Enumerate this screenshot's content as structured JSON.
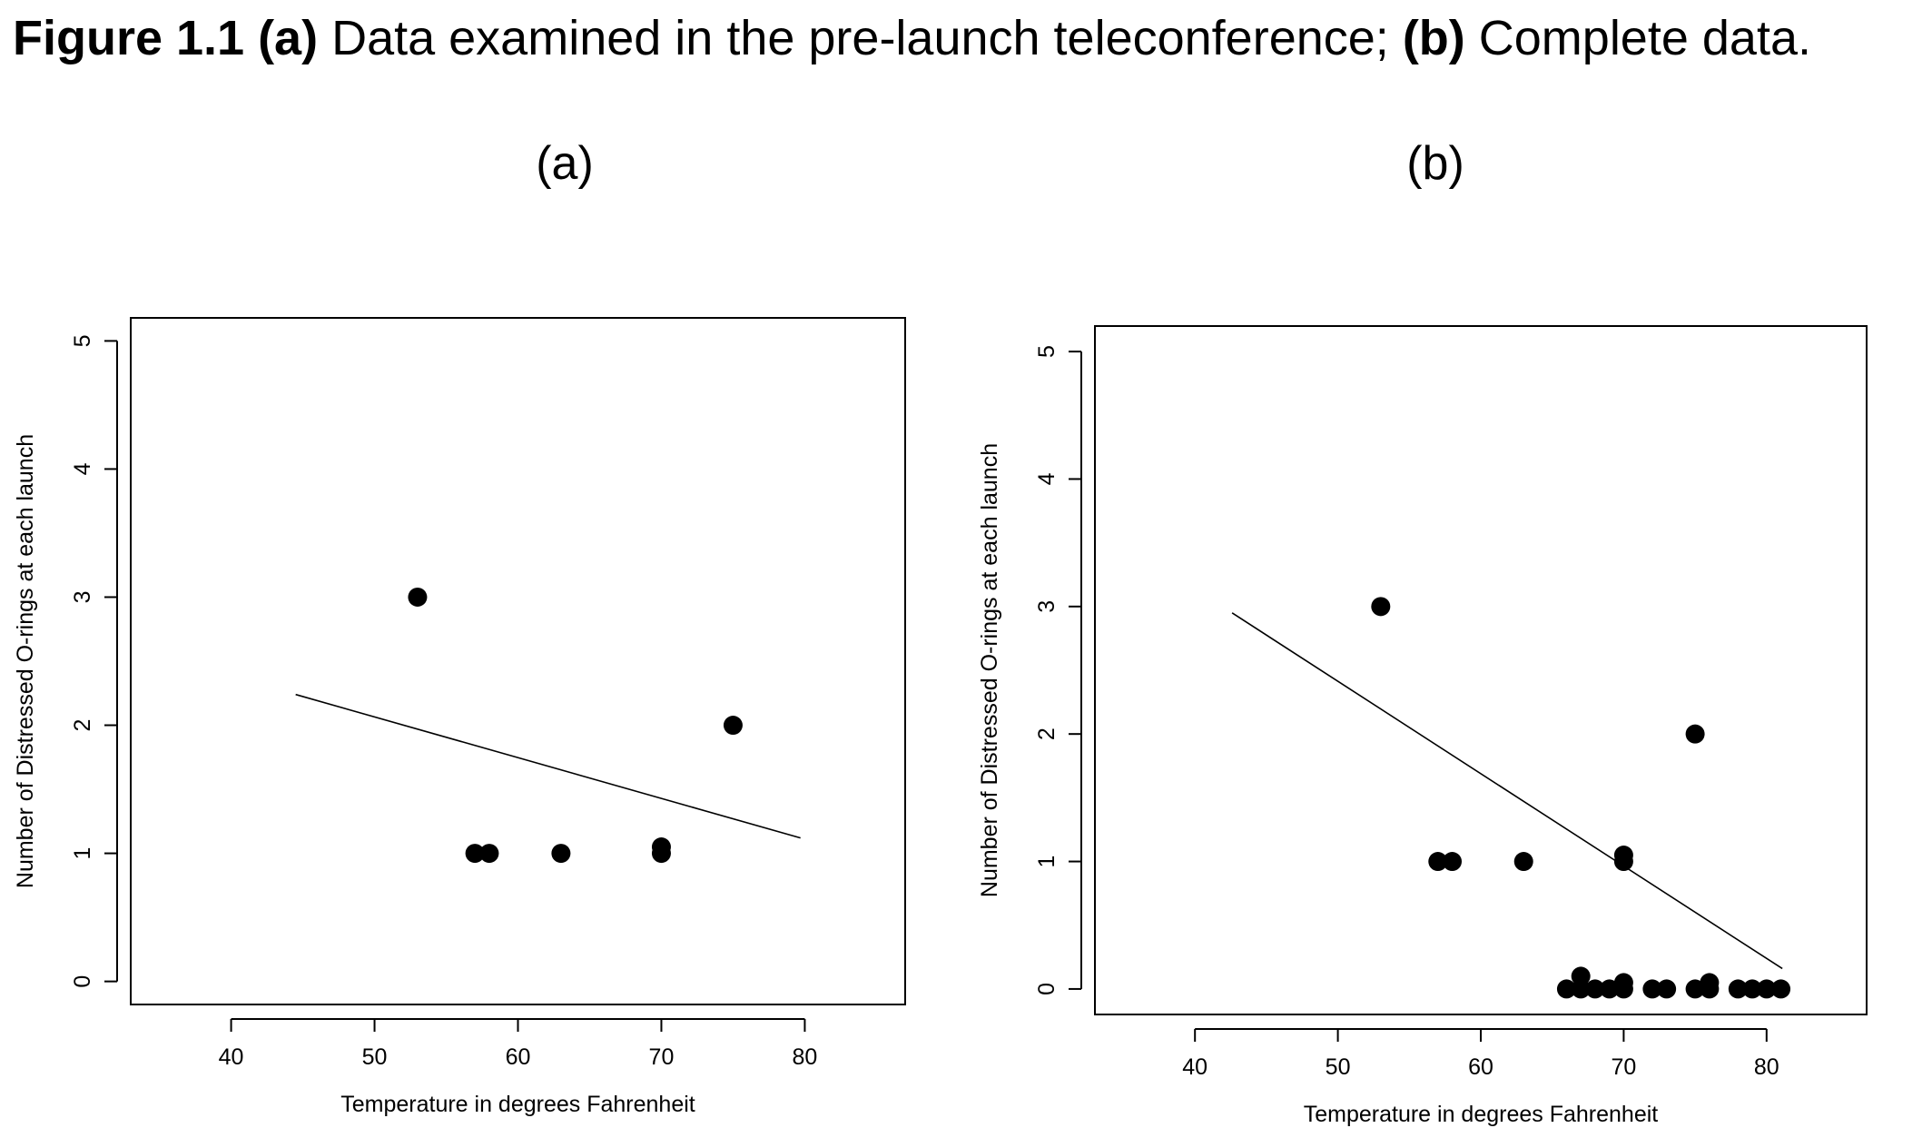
{
  "figure": {
    "title_bold_1": "Figure 1.1 (a)",
    "title_text_1": " Data examined in the pre-launch teleconference; ",
    "title_bold_2": "(b)",
    "title_text_2": " Complete data."
  },
  "chart_data": [
    {
      "type": "scatter",
      "title": "(a)",
      "xlabel": "Temperature in degrees Fahrenheit",
      "ylabel": "Number of Distressed O-rings at each launch",
      "xlim": [
        33,
        87
      ],
      "ylim": [
        -0.18,
        5.18
      ],
      "xticks": [
        40,
        50,
        60,
        70,
        80
      ],
      "yticks": [
        0,
        1,
        2,
        3,
        4,
        5
      ],
      "grid": false,
      "points": [
        {
          "x": 53,
          "y": 3
        },
        {
          "x": 57,
          "y": 1
        },
        {
          "x": 58,
          "y": 1
        },
        {
          "x": 63,
          "y": 1
        },
        {
          "x": 70,
          "y": 1
        },
        {
          "x": 70,
          "y": 1.05
        },
        {
          "x": 75,
          "y": 2
        }
      ],
      "fit_line": {
        "x": [
          44.5,
          79.7
        ],
        "y": [
          2.24,
          1.12
        ]
      }
    },
    {
      "type": "scatter",
      "title": "(b)",
      "xlabel": "Temperature in degrees Fahrenheit",
      "ylabel": "Number of Distressed O-rings at each launch",
      "xlim": [
        33,
        87
      ],
      "ylim": [
        -0.2,
        5.2
      ],
      "xticks": [
        40,
        50,
        60,
        70,
        80
      ],
      "yticks": [
        0,
        1,
        2,
        3,
        4,
        5
      ],
      "grid": false,
      "points": [
        {
          "x": 53,
          "y": 3
        },
        {
          "x": 57,
          "y": 1
        },
        {
          "x": 58,
          "y": 1
        },
        {
          "x": 63,
          "y": 1
        },
        {
          "x": 66,
          "y": 0
        },
        {
          "x": 67,
          "y": 0
        },
        {
          "x": 67,
          "y": 0.1
        },
        {
          "x": 68,
          "y": 0
        },
        {
          "x": 69,
          "y": 0
        },
        {
          "x": 70,
          "y": 0
        },
        {
          "x": 70,
          "y": 0.05
        },
        {
          "x": 70,
          "y": 1
        },
        {
          "x": 70,
          "y": 1.05
        },
        {
          "x": 72,
          "y": 0
        },
        {
          "x": 73,
          "y": 0
        },
        {
          "x": 75,
          "y": 0
        },
        {
          "x": 75,
          "y": 2
        },
        {
          "x": 76,
          "y": 0
        },
        {
          "x": 76,
          "y": 0.05
        },
        {
          "x": 78,
          "y": 0
        },
        {
          "x": 79,
          "y": 0
        },
        {
          "x": 80,
          "y": 0
        },
        {
          "x": 81,
          "y": 0
        }
      ],
      "fit_line": {
        "x": [
          42.6,
          81.1
        ],
        "y": [
          2.95,
          0.16
        ]
      }
    }
  ]
}
